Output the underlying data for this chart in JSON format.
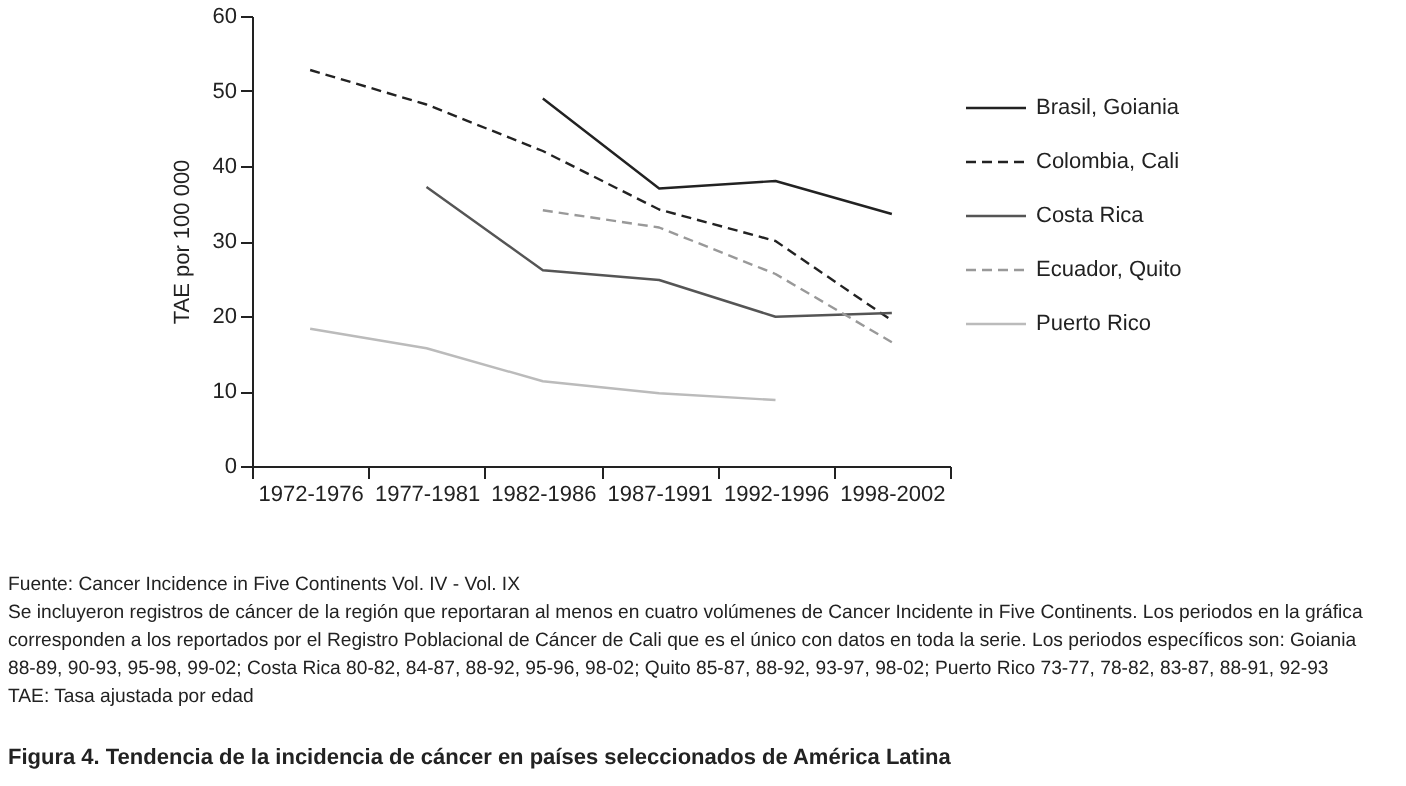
{
  "chart_data": {
    "type": "line",
    "title": "Figura 4. Tendencia de la incidencia de cáncer en países seleccionados de América Latina",
    "ylabel": "TAE por 100 000",
    "categories": [
      "1972-1976",
      "1977-1981",
      "1982-1986",
      "1987-1991",
      "1992-1996",
      "1998-2002"
    ],
    "ylim": [
      0,
      60
    ],
    "yticks": [
      0,
      10,
      20,
      30,
      40,
      50,
      60
    ],
    "grid": false,
    "legend": "top right",
    "series": [
      {
        "name": "Brasil, Goiania",
        "color": "#222222",
        "line_style": "solid",
        "values": [
          null,
          null,
          49,
          37,
          38,
          33.6
        ]
      },
      {
        "name": "Colombia, Cali",
        "color": "#222222",
        "line_style": "dashed",
        "values": [
          52.8,
          48.2,
          42,
          34.2,
          30,
          19.4
        ]
      },
      {
        "name": "Costa Rica",
        "color": "#555555",
        "line_style": "solid",
        "values": [
          null,
          37.2,
          26.1,
          24.8,
          19.9,
          20.4
        ]
      },
      {
        "name": "Ecuador, Quito",
        "color": "#999999",
        "line_style": "dashed",
        "values": [
          null,
          null,
          34.1,
          31.8,
          25.6,
          16.5
        ]
      },
      {
        "name": "Puerto Rico",
        "color": "#bbbbbb",
        "line_style": "solid",
        "values": [
          18.3,
          15.7,
          11.3,
          9.7,
          8.8,
          null
        ]
      }
    ],
    "annotations": [
      "Fuente: Cancer Incidence in Five Continents Vol. IV - Vol. IX",
      "Se incluyeron registros de cáncer de la región que reportaran al menos en cuatro volúmenes de Cancer Incidente in Five Continents. Los periodos en la gráfica",
      "corresponden a los reportados por el Registro Poblacional de Cáncer de Cali que es el único con datos en toda la serie. Los periodos específicos son: Goiania",
      "88-89, 90-93, 95-98, 99-02; Costa Rica 80-82, 84-87, 88-92, 95-96, 98-02; Quito 85-87, 88-92, 93-97, 98-02; Puerto Rico 73-77, 78-82, 83-87, 88-91, 92-93",
      "TAE: Tasa ajustada por edad"
    ]
  }
}
